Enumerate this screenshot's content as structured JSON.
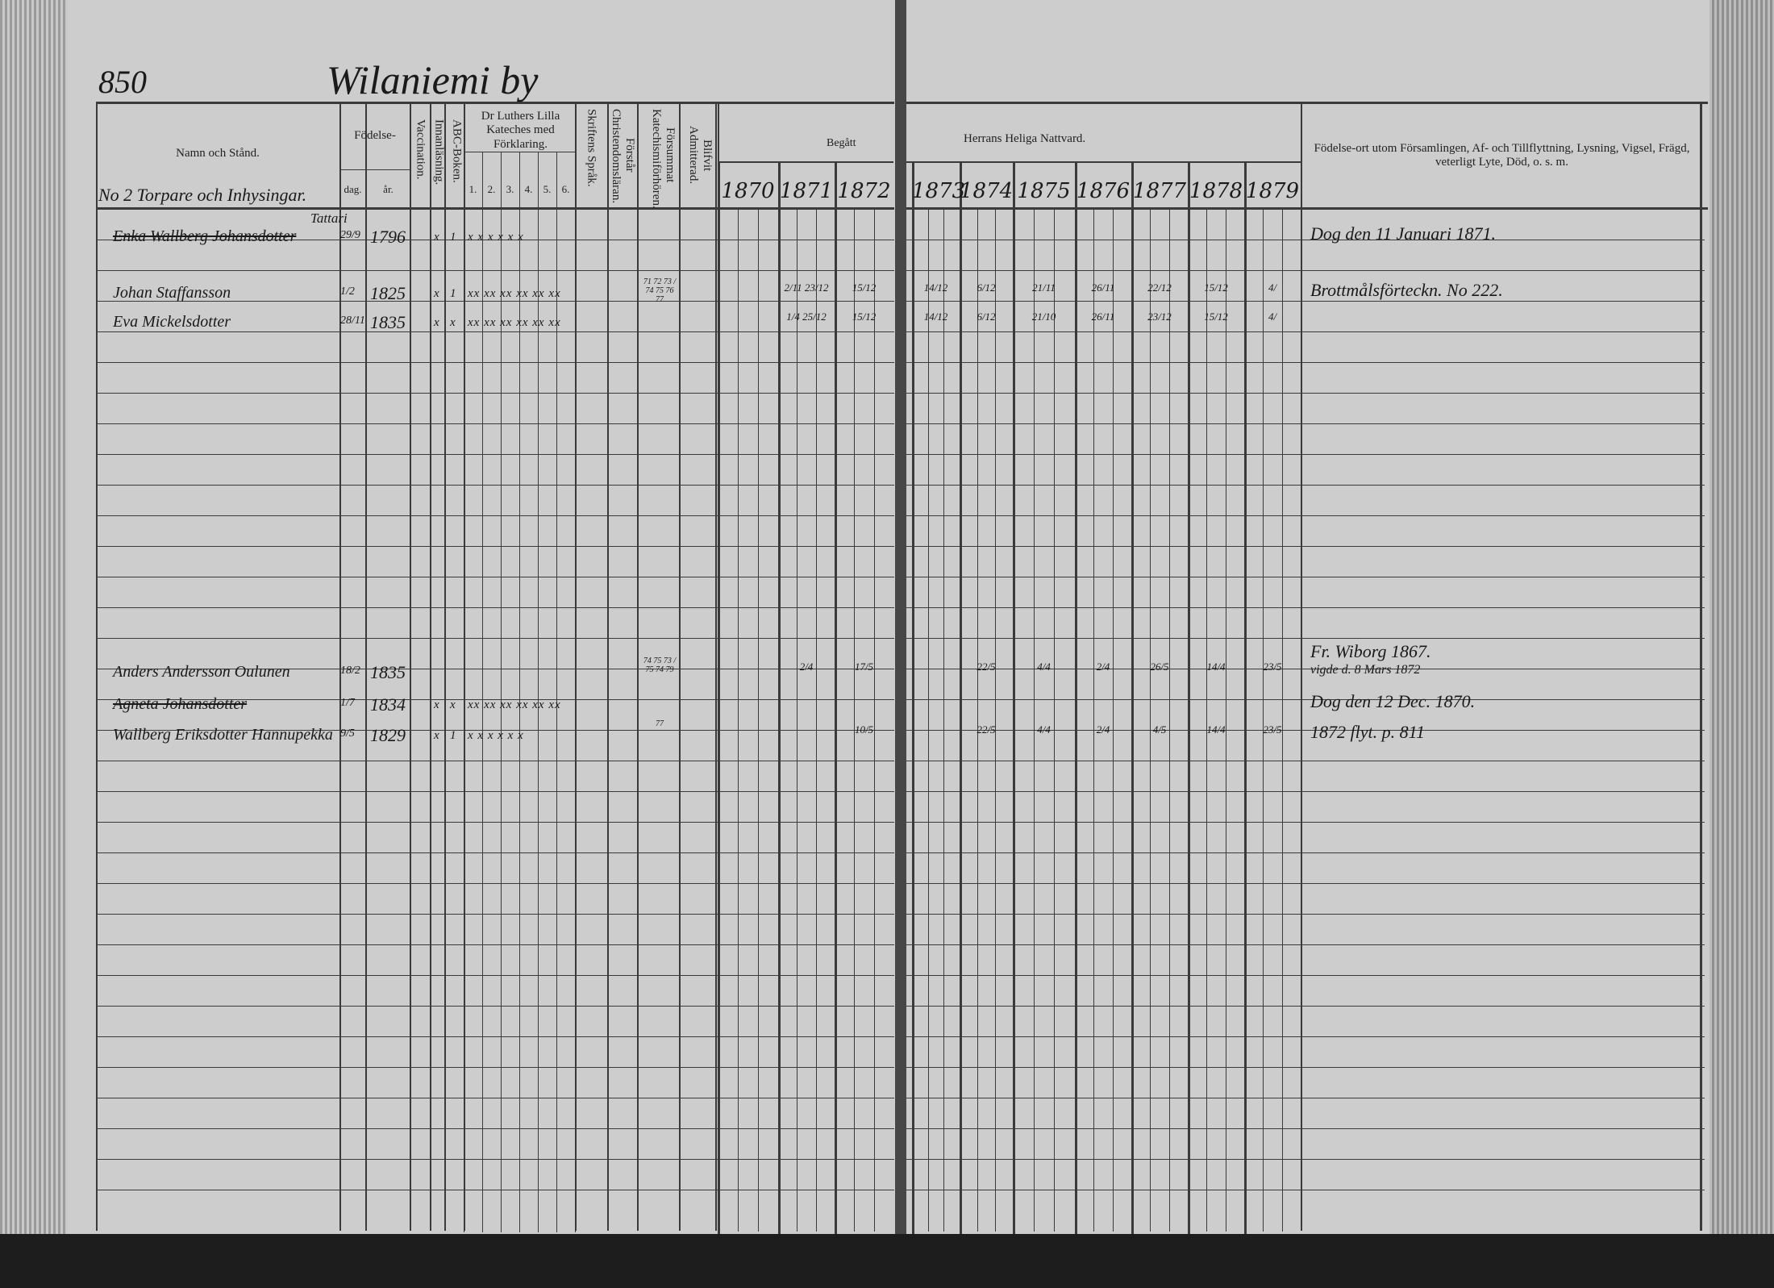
{
  "register": {
    "page_number": "850",
    "village": "Wilaniemi by",
    "household": "No 2 Torpare och Inhysingar."
  },
  "headers": {
    "name": "Namn och Stånd.",
    "birth": "Födelse-",
    "day": "dag.",
    "year": "år.",
    "vaccination": "Vaccination.",
    "reading": "Innanläsning.",
    "abc": "ABC-Boken.",
    "catechism": "Dr Luthers Lilla Kateches med Förklaring.",
    "catechism_parts": [
      "1.",
      "2.",
      "3.",
      "4.",
      "5.",
      "6."
    ],
    "scripture": "Skriftens Språk.",
    "christianity": "Förstår Christendomsläran.",
    "missed": "Försummat Katechismiförhören.",
    "admitted": "Blifvit Admitterad.",
    "communion_left": "Begått",
    "communion_right": "Herrans Heliga Nattvard.",
    "years": [
      "1870",
      "1871",
      "1872",
      "1873",
      "1874",
      "1875",
      "1876",
      "1877",
      "1878",
      "1879"
    ],
    "remarks": "Födelse-ort utom Församlingen, Af- och Tillflyttning, Lysning, Vigsel, Frägd, veterligt Lyte, Död, o. s. m."
  },
  "entries": [
    {
      "name": "Enka Wallberg Johansdotter",
      "note": "Tattari",
      "struck": true,
      "day": "29/9",
      "year": "1796",
      "vaccination": "x",
      "reading": "1",
      "catechism": "x x x x x x",
      "communion": [
        "",
        "",
        "",
        "",
        "",
        "",
        "",
        "",
        "",
        ""
      ],
      "remarks": [
        "Dog den 11 Januari 1871."
      ]
    },
    {
      "name": "Johan Staffansson",
      "note": "",
      "struck": false,
      "day": "1/2",
      "year": "1825",
      "vaccination": "x",
      "reading": "1",
      "catechism": "xx xx xx xx xx xx",
      "missed": "71 72 73 / 74 75 76 77",
      "communion": [
        "",
        "2/11 23/12",
        "15/12",
        "14/12",
        "6/12",
        "21/11",
        "26/11",
        "22/12",
        "15/12",
        "4/"
      ],
      "remarks": [
        "Brottmålsförteckn. No 222."
      ]
    },
    {
      "name": "Eva Mickelsdotter",
      "note": "",
      "struck": false,
      "day": "28/11",
      "year": "1835",
      "vaccination": "x",
      "reading": "x",
      "catechism": "xx xx xx xx xx xx",
      "communion": [
        "",
        "1/4 25/12",
        "15/12",
        "14/12",
        "6/12",
        "21/10",
        "26/11",
        "23/12",
        "15/12",
        "4/"
      ],
      "remarks": []
    },
    {
      "name": "Anders Andersson Oulunen",
      "note": "",
      "struck": false,
      "day": "18/2",
      "year": "1835",
      "vaccination": "",
      "reading": "",
      "catechism": "",
      "missed": "74 75 73 / 75 74 79",
      "communion": [
        "",
        "2/4",
        "17/5",
        "",
        "22/5",
        "4/4",
        "2/4",
        "26/5",
        "14/4",
        "23/5"
      ],
      "remarks": [
        "Fr. Wiborg 1867.",
        "vigde d. 8 Mars 1872"
      ]
    },
    {
      "name": "Agneta Johansdotter",
      "note": "",
      "struck": true,
      "day": "1/7",
      "year": "1834",
      "vaccination": "x",
      "reading": "x",
      "catechism": "xx xx xx xx xx xx",
      "communion": [
        "",
        "",
        "",
        "",
        "",
        "",
        "",
        "",
        "",
        ""
      ],
      "remarks": [
        "Dog den 12 Dec. 1870."
      ]
    },
    {
      "name": "Wallberg Eriksdotter Hannupekka",
      "note": "",
      "struck": false,
      "day": "9/5",
      "year": "1829",
      "vaccination": "x",
      "reading": "1",
      "catechism": "x x x x x x",
      "missed": "77",
      "communion": [
        "",
        "",
        "10/5",
        "",
        "22/5",
        "4/4",
        "2/4",
        "4/5",
        "14/4",
        "23/5"
      ],
      "remarks": [
        "1872 flyt. p. 811"
      ]
    }
  ],
  "colors": {
    "paper": "#cdcdcd",
    "ink": "#1a1a1a",
    "rule": "#3a3a3a"
  }
}
